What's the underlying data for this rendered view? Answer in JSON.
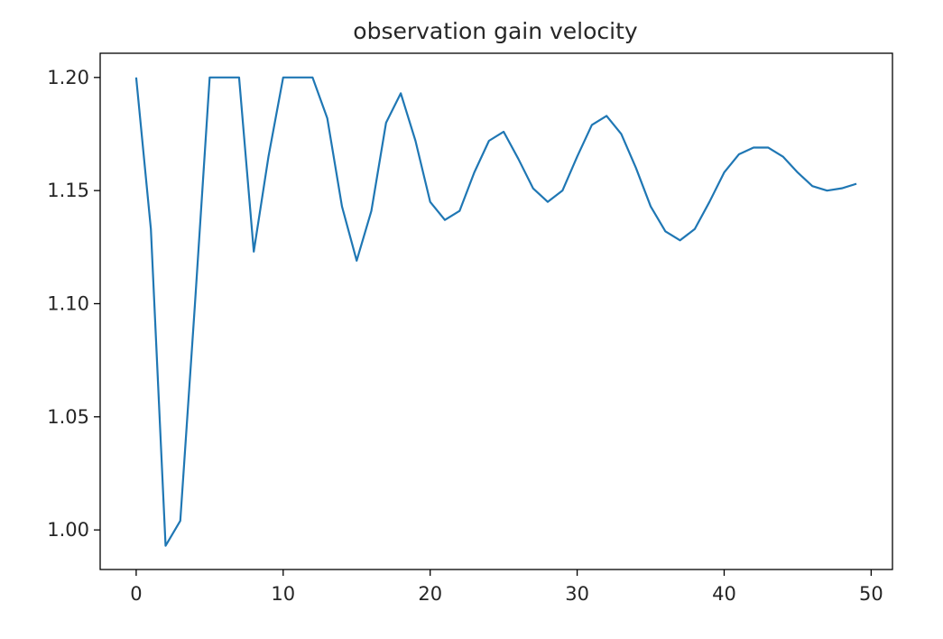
{
  "chart_data": {
    "type": "line",
    "title": "observation gain velocity",
    "xlabel": "",
    "ylabel": "",
    "xlim": [
      -2.45,
      51.45
    ],
    "ylim": [
      0.9825,
      1.2107
    ],
    "x_ticks": [
      0,
      10,
      20,
      30,
      40,
      50
    ],
    "x_tick_labels": [
      "0",
      "10",
      "20",
      "30",
      "40",
      "50"
    ],
    "y_ticks": [
      1.0,
      1.05,
      1.1,
      1.15,
      1.2
    ],
    "y_tick_labels": [
      "1.00",
      "1.05",
      "1.10",
      "1.15",
      "1.20"
    ],
    "grid": false,
    "legend": "none",
    "series": [
      {
        "color": "#1f77b4",
        "x": [
          0,
          1,
          2,
          3,
          4,
          5,
          6,
          7,
          8,
          9,
          10,
          11,
          12,
          13,
          14,
          15,
          16,
          17,
          18,
          19,
          20,
          21,
          22,
          23,
          24,
          25,
          26,
          27,
          28,
          29,
          30,
          31,
          32,
          33,
          34,
          35,
          36,
          37,
          38,
          39,
          40,
          41,
          42,
          43,
          44,
          45,
          46,
          47,
          48,
          49
        ],
        "y": [
          1.2,
          1.133,
          0.993,
          1.004,
          1.1,
          1.2,
          1.2,
          1.2,
          1.123,
          1.165,
          1.2,
          1.2,
          1.2,
          1.182,
          1.143,
          1.119,
          1.141,
          1.18,
          1.193,
          1.172,
          1.145,
          1.137,
          1.141,
          1.158,
          1.172,
          1.176,
          1.164,
          1.151,
          1.145,
          1.15,
          1.165,
          1.179,
          1.183,
          1.175,
          1.16,
          1.143,
          1.132,
          1.128,
          1.133,
          1.145,
          1.158,
          1.166,
          1.169,
          1.169,
          1.165,
          1.158,
          1.152,
          1.15,
          1.151,
          1.153
        ]
      }
    ]
  }
}
